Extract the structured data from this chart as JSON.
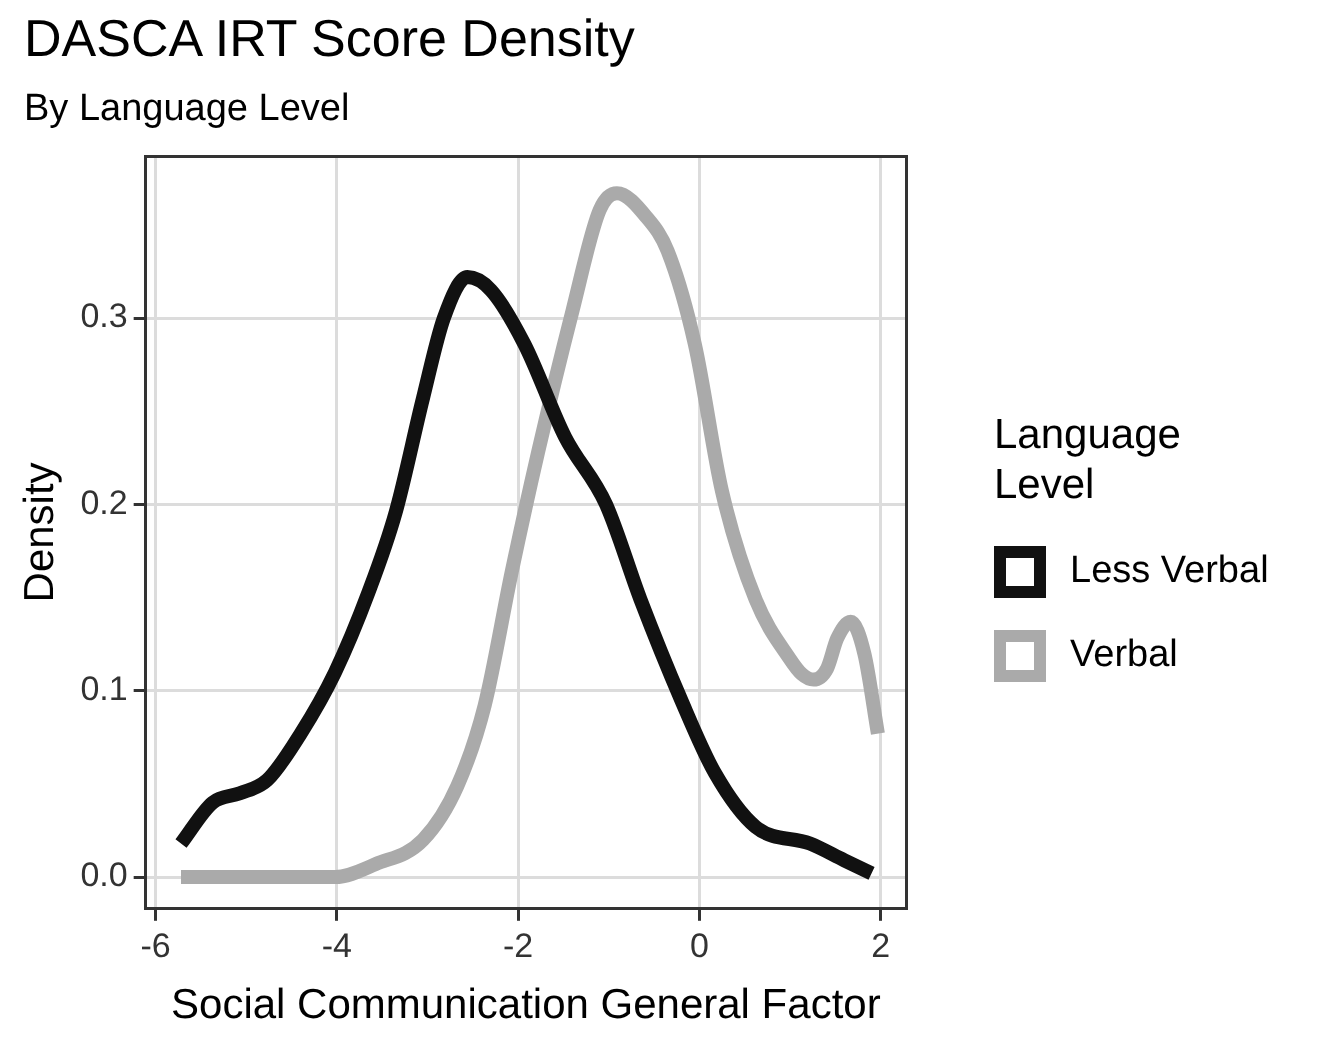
{
  "chart_data": {
    "type": "line",
    "title": "DASCA IRT Score Density",
    "subtitle": "By Language Level",
    "xlabel": "Social Communication General Factor",
    "ylabel": "Density",
    "legend_title": "Language Level",
    "xlim": [
      -6.11,
      2.28
    ],
    "xticks": [
      -6,
      -4,
      -2,
      0,
      2
    ],
    "ylim": [
      -0.017,
      0.387
    ],
    "yticks": [
      {
        "value": 0,
        "label": "0.0"
      },
      {
        "value": 0.1,
        "label": "0.1"
      },
      {
        "value": 0.2,
        "label": "0.2"
      },
      {
        "value": 0.3,
        "label": "0.3"
      }
    ],
    "grid": true,
    "legend": "right",
    "marker": "none",
    "line_style": "solid",
    "series": [
      {
        "name": "Less Verbal",
        "color": "#111111",
        "x": [
          -5.72,
          -5.37,
          -5.07,
          -4.77,
          -4.4,
          -4.02,
          -3.65,
          -3.35,
          -3.05,
          -2.82,
          -2.56,
          -2.3,
          -1.93,
          -1.48,
          -1.03,
          -0.65,
          -0.2,
          0.17,
          0.62,
          1.22,
          1.6,
          1.9
        ],
        "values": [
          0.018,
          0.04,
          0.045,
          0.052,
          0.077,
          0.11,
          0.153,
          0.196,
          0.257,
          0.3,
          0.322,
          0.315,
          0.286,
          0.236,
          0.2,
          0.149,
          0.095,
          0.056,
          0.027,
          0.018,
          0.009,
          0.002
        ]
      },
      {
        "name": "Verbal",
        "color": "#aaaaaa",
        "x": [
          -5.72,
          -4.02,
          -3.57,
          -3.05,
          -2.67,
          -2.37,
          -2.07,
          -1.78,
          -1.4,
          -1.1,
          -0.91,
          -0.58,
          -0.35,
          -0.05,
          0.25,
          0.62,
          1.0,
          1.13,
          1.26,
          1.41,
          1.52,
          1.67,
          1.82,
          1.97
        ],
        "values": [
          0,
          0,
          0.007,
          0.02,
          0.049,
          0.092,
          0.164,
          0.228,
          0.304,
          0.358,
          0.367,
          0.354,
          0.336,
          0.286,
          0.207,
          0.149,
          0.117,
          0.109,
          0.106,
          0.112,
          0.128,
          0.137,
          0.12,
          0.077
        ]
      }
    ]
  }
}
